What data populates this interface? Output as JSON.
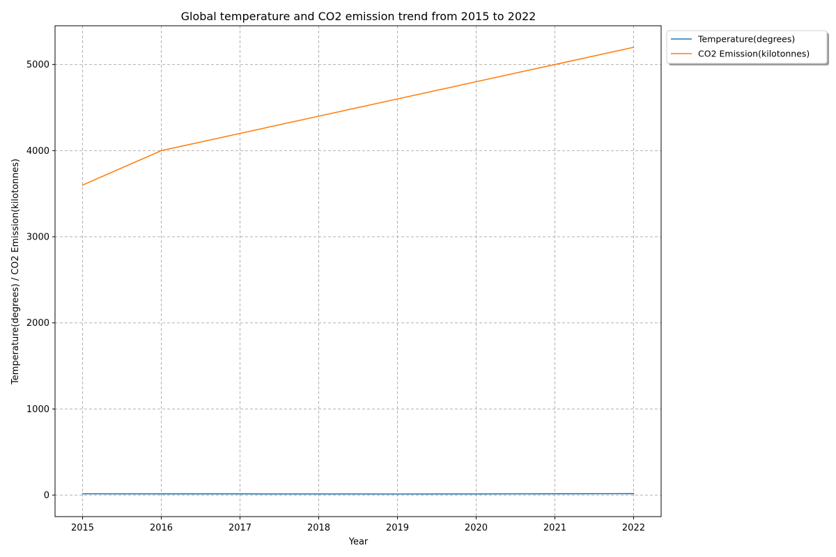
{
  "chart_data": {
    "type": "line",
    "title": "Global temperature and CO2 emission trend from 2015 to 2022",
    "xlabel": "Year",
    "ylabel": "Temperature(degrees) / CO2 Emission(kilotonnes)",
    "x": [
      2015,
      2016,
      2017,
      2018,
      2019,
      2020,
      2021,
      2022
    ],
    "x_ticks": [
      "2015",
      "2016",
      "2017",
      "2018",
      "2019",
      "2020",
      "2021",
      "2022"
    ],
    "y_ticks": [
      "0",
      "1000",
      "2000",
      "3000",
      "4000",
      "5000"
    ],
    "xlim": [
      2014.65,
      2022.35
    ],
    "ylim": [
      -250,
      5450
    ],
    "grid": true,
    "legend_position": "outside-top-right",
    "series": [
      {
        "name": "Temperature(degrees)",
        "color": "#1f77b4",
        "values": [
          14.8,
          14.5,
          13.9,
          13.2,
          12.8,
          13.5,
          15.2,
          17.1
        ]
      },
      {
        "name": "CO2 Emission(kilotonnes)",
        "color": "#ff7f0e",
        "values": [
          3600,
          4000,
          4200,
          4400,
          4600,
          4800,
          5000,
          5200
        ]
      }
    ]
  }
}
